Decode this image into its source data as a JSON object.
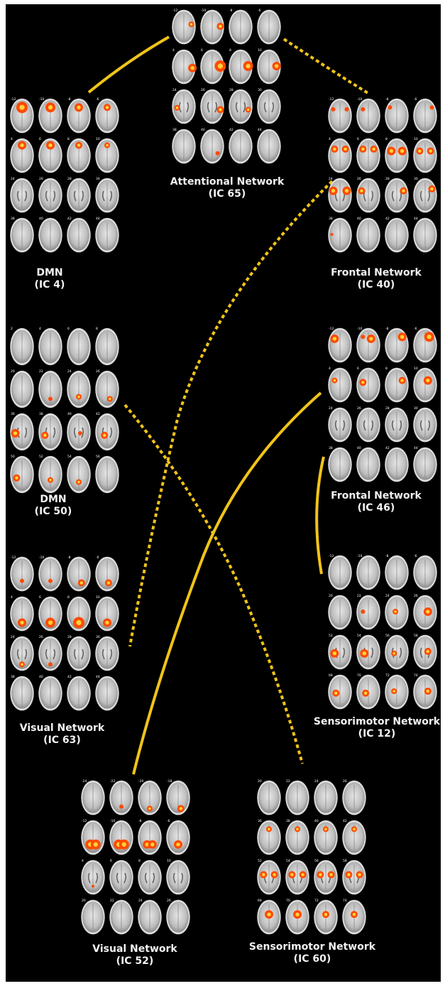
{
  "colors": {
    "background": "#000000",
    "frame": "#ffffff",
    "connector": "#f0c419",
    "label": "#f2f2f2",
    "activation": "#ff4a00",
    "activation_core": "#ffd23a"
  },
  "networks": [
    {
      "id": "ic65",
      "name": "Attentional Network",
      "component": "(IC 65)",
      "slices": [
        "-12",
        "-10",
        "-8",
        "-6",
        "4",
        "6",
        "8",
        "10",
        "24",
        "26",
        "28",
        "30",
        "38",
        "40",
        "42",
        "44"
      ]
    },
    {
      "id": "ic4",
      "name": "DMN",
      "component": "(IC 4)",
      "slices": [
        "-12",
        "-10",
        "-8",
        "-6",
        "4",
        "6",
        "8",
        "10",
        "24",
        "26",
        "28",
        "30",
        "38",
        "40",
        "42",
        "44"
      ]
    },
    {
      "id": "ic40",
      "name": "Frontal Network",
      "component": "(IC 40)",
      "slices": [
        "-12",
        "-10",
        "-8",
        "-6",
        "4",
        "6",
        "8",
        "10",
        "24",
        "26",
        "28",
        "30",
        "38",
        "40",
        "42",
        "44"
      ]
    },
    {
      "id": "ic50",
      "name": "DMN",
      "component": "(IC 50)",
      "slices": [
        "2",
        "4",
        "6",
        "8",
        "20",
        "22",
        "24",
        "26",
        "36",
        "38",
        "40",
        "42",
        "50",
        "52",
        "54",
        "56"
      ]
    },
    {
      "id": "ic46",
      "name": "Frontal Network",
      "component": "(IC 46)",
      "slices": [
        "-12",
        "-10",
        "-8",
        "-6",
        "4",
        "6",
        "8",
        "10",
        "24",
        "26",
        "28",
        "30",
        "38",
        "40",
        "42",
        "44"
      ]
    },
    {
      "id": "ic63",
      "name": "Visual Network",
      "component": "(IC 63)",
      "slices": [
        "-12",
        "-10",
        "-8",
        "-6",
        "4",
        "6",
        "8",
        "10",
        "24",
        "26",
        "28",
        "30",
        "38",
        "40",
        "42",
        "44"
      ]
    },
    {
      "id": "ic12",
      "name": "Sensorimotor Network",
      "component": "(IC 12)",
      "slices": [
        "-12",
        "-10",
        "-8",
        "-6",
        "20",
        "22",
        "24",
        "26",
        "52",
        "54",
        "56",
        "58",
        "68",
        "70",
        "72",
        "74"
      ]
    },
    {
      "id": "ic52",
      "name": "Visual Network",
      "component": "(IC 52)",
      "slices": [
        "-24",
        "-22",
        "-20",
        "-18",
        "-12",
        "-10",
        "-8",
        "-6",
        "4",
        "6",
        "8",
        "10",
        "20",
        "22",
        "24",
        "26"
      ]
    },
    {
      "id": "ic60",
      "name": "Sensorimotor Network",
      "component": "(IC 60)",
      "slices": [
        "20",
        "22",
        "24",
        "26",
        "36",
        "38",
        "40",
        "42",
        "52",
        "54",
        "56",
        "58",
        "68",
        "70",
        "72",
        "74"
      ]
    }
  ],
  "connections": [
    {
      "from": "ic4",
      "to": "ic65",
      "style": "solid"
    },
    {
      "from": "ic65",
      "to": "ic40",
      "style": "dotted"
    },
    {
      "from": "ic40",
      "to": "ic63",
      "style": "dotted"
    },
    {
      "from": "ic50",
      "to": "ic60",
      "style": "dotted"
    },
    {
      "from": "ic46",
      "to": "ic52",
      "style": "solid"
    },
    {
      "from": "ic46",
      "to": "ic12",
      "style": "solid"
    }
  ]
}
